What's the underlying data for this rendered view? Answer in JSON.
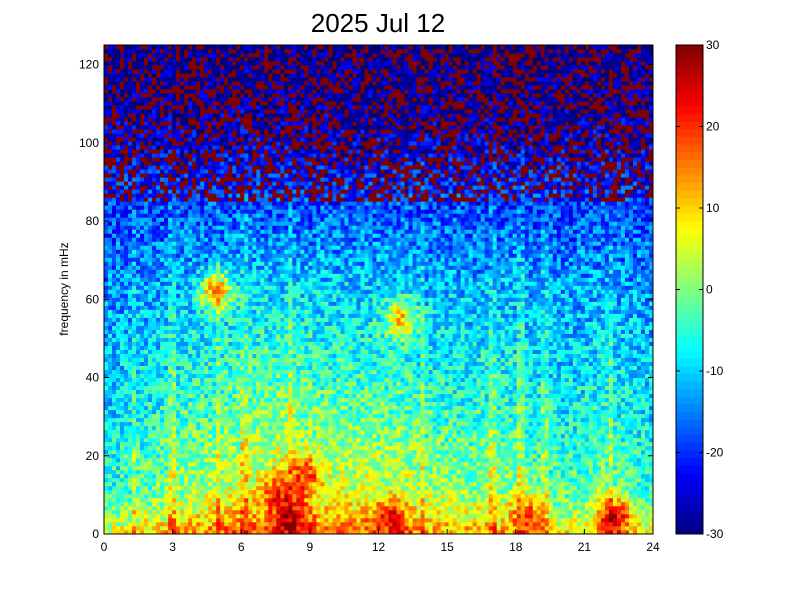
{
  "chart_data": {
    "type": "heatmap",
    "title": "2025 Jul 12",
    "xlabel": "",
    "ylabel": "frequency in mHz",
    "xlim": [
      0,
      24
    ],
    "ylim": [
      0,
      125
    ],
    "x_ticks": [
      0,
      3,
      6,
      9,
      12,
      15,
      18,
      21,
      24
    ],
    "y_ticks": [
      0,
      20,
      40,
      60,
      80,
      100,
      120
    ],
    "colorbar": {
      "range": [
        -30,
        30
      ],
      "ticks": [
        -30,
        -20,
        -10,
        0,
        10,
        20,
        30
      ],
      "colormap": "jet"
    },
    "grid": false,
    "description_regions": [
      {
        "x_range": [
          0,
          24
        ],
        "y_range": [
          0,
          8
        ],
        "level": 12
      },
      {
        "x_range": [
          7,
          9
        ],
        "y_range": [
          0,
          25
        ],
        "level": 20
      },
      {
        "x_range": [
          3,
          14
        ],
        "y_range": [
          20,
          65
        ],
        "level": 0
      },
      {
        "x_range": [
          0,
          24
        ],
        "y_range": [
          90,
          125
        ],
        "level": -30
      }
    ],
    "spectrum_profile": {
      "y": [
        0,
        1,
        3,
        5,
        8,
        12,
        20,
        30,
        40,
        50,
        60,
        70,
        80,
        90,
        100,
        110,
        125
      ],
      "base_level": [
        12,
        12,
        8,
        6,
        3,
        0,
        -2,
        -5,
        -7,
        -9,
        -11,
        -14,
        -17,
        -21,
        -25,
        -28,
        -30
      ]
    },
    "time_activity": {
      "x": [
        0,
        1,
        2,
        3,
        4,
        5,
        6,
        7,
        8,
        9,
        10,
        11,
        12,
        13,
        14,
        15,
        16,
        17,
        18,
        19,
        20,
        21,
        22,
        23,
        24
      ],
      "boost": [
        -7,
        -4,
        -2,
        0,
        2,
        4,
        6,
        7,
        8,
        6,
        5,
        5,
        5,
        5,
        2,
        1,
        0,
        1,
        1,
        -2,
        -4,
        -3,
        0,
        -3,
        -5
      ]
    },
    "vertical_streaks": [
      1.3,
      3.0,
      5.0,
      6.1,
      8.2,
      13.9,
      17.0,
      18.2,
      19.3,
      22.2
    ],
    "hot_spots": [
      {
        "x": 8.2,
        "y": 4,
        "level": 28
      },
      {
        "x": 7.7,
        "y": 10,
        "level": 22
      },
      {
        "x": 8.8,
        "y": 15,
        "level": 20
      },
      {
        "x": 12.5,
        "y": 4,
        "level": 22
      },
      {
        "x": 22.3,
        "y": 4,
        "level": 25
      },
      {
        "x": 18.5,
        "y": 4,
        "level": 20
      },
      {
        "x": 4.9,
        "y": 62,
        "level": 14
      },
      {
        "x": 13.0,
        "y": 55,
        "level": 10
      }
    ]
  }
}
